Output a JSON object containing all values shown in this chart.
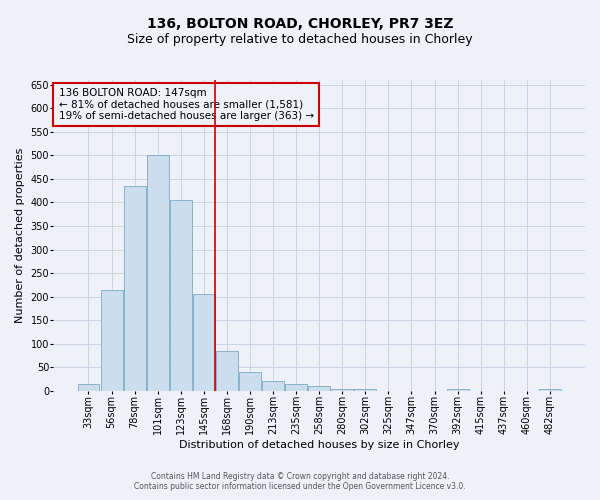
{
  "title": "136, BOLTON ROAD, CHORLEY, PR7 3EZ",
  "subtitle": "Size of property relative to detached houses in Chorley",
  "xlabel": "Distribution of detached houses by size in Chorley",
  "ylabel": "Number of detached properties",
  "bar_color": "#ccdded",
  "bar_edgecolor": "#7aaac8",
  "bar_linewidth": 0.6,
  "categories": [
    "33sqm",
    "56sqm",
    "78sqm",
    "101sqm",
    "123sqm",
    "145sqm",
    "168sqm",
    "190sqm",
    "213sqm",
    "235sqm",
    "258sqm",
    "280sqm",
    "302sqm",
    "325sqm",
    "347sqm",
    "370sqm",
    "392sqm",
    "415sqm",
    "437sqm",
    "460sqm",
    "482sqm"
  ],
  "values": [
    15,
    215,
    435,
    500,
    405,
    205,
    85,
    40,
    20,
    15,
    10,
    5,
    5,
    0,
    0,
    0,
    5,
    0,
    0,
    0,
    5
  ],
  "vline_index": 5,
  "vline_color": "#cc0000",
  "annotation_line1": "136 BOLTON ROAD: 147sqm",
  "annotation_line2": "← 81% of detached houses are smaller (1,581)",
  "annotation_line3": "19% of semi-detached houses are larger (363) →",
  "annotation_box_color": "#cc0000",
  "annotation_text_size": 7.5,
  "ylim": [
    0,
    660
  ],
  "yticks": [
    0,
    50,
    100,
    150,
    200,
    250,
    300,
    350,
    400,
    450,
    500,
    550,
    600,
    650
  ],
  "grid_color": "#c8d4e4",
  "background_color": "#eef2f8",
  "footer_line1": "Contains HM Land Registry data © Crown copyright and database right 2024.",
  "footer_line2": "Contains public sector information licensed under the Open Government Licence v3.0.",
  "title_fontsize": 10,
  "subtitle_fontsize": 9,
  "ylabel_fontsize": 8,
  "xlabel_fontsize": 8,
  "tick_fontsize": 7,
  "footer_fontsize": 5.5
}
